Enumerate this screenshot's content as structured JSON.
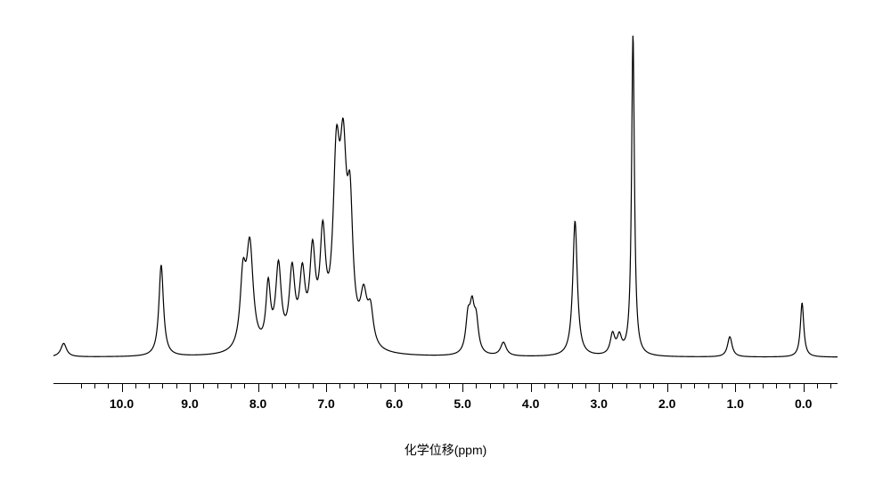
{
  "chart": {
    "type": "nmr_spectrum",
    "xlabel": "化学位移(ppm)",
    "xlim": [
      11.0,
      -0.5
    ],
    "x_tick_min": 0.0,
    "x_tick_max": 10.0,
    "x_tick_step": 1.0,
    "minor_ticks_between": 4,
    "background_color": "#ffffff",
    "line_color": "#000000",
    "axis_color": "#000000",
    "tick_fontsize": 14,
    "label_fontsize": 14,
    "line_width": 1.2,
    "baseline_y": 0.05,
    "peaks": [
      {
        "x": 10.85,
        "h": 0.04,
        "w": 0.05
      },
      {
        "x": 9.42,
        "h": 0.27,
        "w": 0.04
      },
      {
        "x": 8.22,
        "h": 0.2,
        "w": 0.05
      },
      {
        "x": 8.12,
        "h": 0.3,
        "w": 0.06
      },
      {
        "x": 7.85,
        "h": 0.18,
        "w": 0.04
      },
      {
        "x": 7.7,
        "h": 0.24,
        "w": 0.05
      },
      {
        "x": 7.5,
        "h": 0.22,
        "w": 0.05
      },
      {
        "x": 7.35,
        "h": 0.2,
        "w": 0.05
      },
      {
        "x": 7.2,
        "h": 0.26,
        "w": 0.05
      },
      {
        "x": 7.05,
        "h": 0.3,
        "w": 0.05
      },
      {
        "x": 6.85,
        "h": 0.5,
        "w": 0.06
      },
      {
        "x": 6.75,
        "h": 0.48,
        "w": 0.06
      },
      {
        "x": 6.65,
        "h": 0.35,
        "w": 0.05
      },
      {
        "x": 6.45,
        "h": 0.14,
        "w": 0.06
      },
      {
        "x": 6.35,
        "h": 0.1,
        "w": 0.05
      },
      {
        "x": 4.92,
        "h": 0.1,
        "w": 0.04
      },
      {
        "x": 4.86,
        "h": 0.12,
        "w": 0.04
      },
      {
        "x": 4.8,
        "h": 0.09,
        "w": 0.04
      },
      {
        "x": 4.4,
        "h": 0.04,
        "w": 0.05
      },
      {
        "x": 3.35,
        "h": 0.4,
        "w": 0.04
      },
      {
        "x": 2.8,
        "h": 0.06,
        "w": 0.04
      },
      {
        "x": 2.7,
        "h": 0.05,
        "w": 0.04
      },
      {
        "x": 2.5,
        "h": 0.95,
        "w": 0.025
      },
      {
        "x": 1.08,
        "h": 0.06,
        "w": 0.04
      },
      {
        "x": 0.02,
        "h": 0.16,
        "w": 0.03
      }
    ]
  }
}
